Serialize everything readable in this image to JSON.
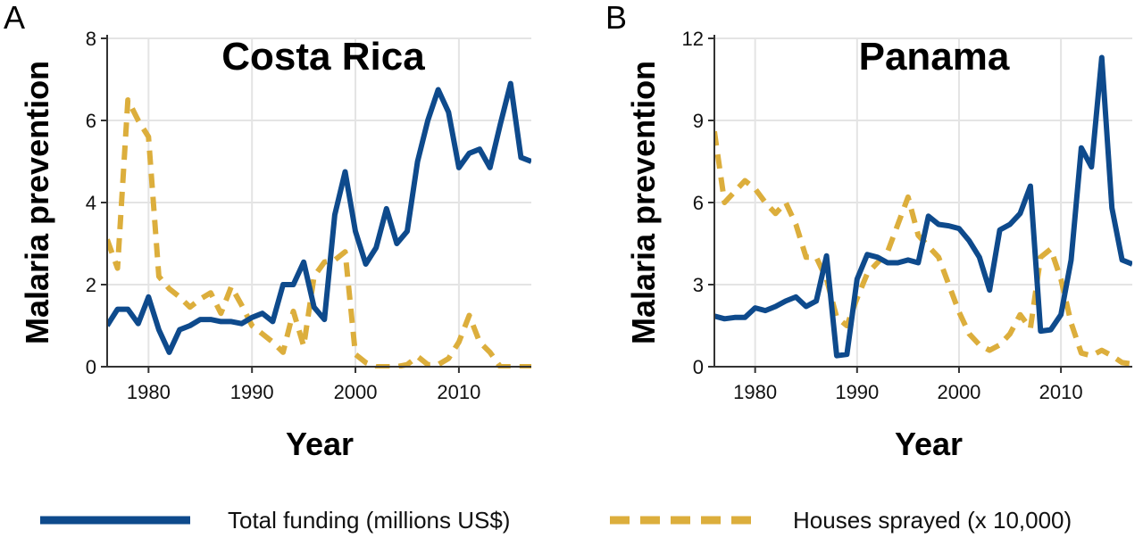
{
  "colors": {
    "funding": "#0e4a8c",
    "sprayed": "#dcae3c",
    "grid": "#e4e4e4",
    "axis": "#333333"
  },
  "legend": {
    "funding_label": "Total funding (millions US$)",
    "sprayed_label": "Houses sprayed (x 10,000)"
  },
  "chart_data": [
    {
      "type": "line",
      "panel_letter": "A",
      "title": "Costa Rica",
      "xlabel": "Year",
      "ylabel": "Malaria prevention",
      "xlim": [
        1976,
        2017
      ],
      "ylim": [
        0,
        8
      ],
      "xticks": [
        1980,
        1990,
        2000,
        2010
      ],
      "yticks": [
        0,
        2,
        4,
        6,
        8
      ],
      "grid": true,
      "series": [
        {
          "name": "Total funding (millions US$)",
          "style": "solid",
          "x": [
            1976,
            1977,
            1978,
            1979,
            1980,
            1981,
            1982,
            1983,
            1984,
            1985,
            1986,
            1987,
            1988,
            1989,
            1990,
            1991,
            1992,
            1993,
            1994,
            1995,
            1996,
            1997,
            1998,
            1999,
            2000,
            2001,
            2002,
            2003,
            2004,
            2005,
            2006,
            2007,
            2008,
            2009,
            2010,
            2011,
            2012,
            2013,
            2014,
            2015,
            2016,
            2017
          ],
          "y": [
            1.0,
            1.4,
            1.4,
            1.05,
            1.7,
            0.9,
            0.35,
            0.9,
            1.0,
            1.15,
            1.15,
            1.1,
            1.1,
            1.05,
            1.2,
            1.3,
            1.1,
            2.0,
            2.0,
            2.55,
            1.45,
            1.15,
            3.7,
            4.75,
            3.3,
            2.5,
            2.9,
            3.85,
            3.0,
            3.3,
            5.0,
            6.0,
            6.75,
            6.2,
            4.85,
            5.2,
            5.3,
            4.85,
            5.9,
            6.9,
            5.1,
            5.0
          ]
        },
        {
          "name": "Houses sprayed (x 10,000)",
          "style": "dashed",
          "x": [
            1976,
            1977,
            1978,
            1979,
            1980,
            1981,
            1982,
            1983,
            1984,
            1985,
            1986,
            1987,
            1988,
            1989,
            1990,
            1991,
            1992,
            1993,
            1994,
            1995,
            1996,
            1997,
            1998,
            1999,
            2000,
            2001,
            2002,
            2003,
            2004,
            2005,
            2006,
            2007,
            2008,
            2009,
            2010,
            2011,
            2012,
            2013,
            2014,
            2015,
            2016,
            2017
          ],
          "y": [
            3.1,
            2.4,
            6.5,
            6.0,
            5.6,
            2.2,
            1.9,
            1.7,
            1.45,
            1.65,
            1.8,
            1.3,
            1.95,
            1.5,
            1.0,
            0.8,
            0.6,
            0.35,
            1.35,
            0.5,
            2.2,
            2.55,
            2.6,
            2.8,
            0.3,
            0.1,
            0.0,
            0.0,
            0.0,
            0.05,
            0.25,
            0.05,
            0.05,
            0.2,
            0.6,
            1.25,
            0.6,
            0.35,
            0.0,
            0.0,
            0.0,
            0.0
          ]
        }
      ]
    },
    {
      "type": "line",
      "panel_letter": "B",
      "title": "Panama",
      "xlabel": "Year",
      "ylabel": "Malaria prevention",
      "xlim": [
        1976,
        2017
      ],
      "ylim": [
        0,
        12
      ],
      "xticks": [
        1980,
        1990,
        2000,
        2010
      ],
      "yticks": [
        0,
        3,
        6,
        9,
        12
      ],
      "grid": true,
      "series": [
        {
          "name": "Total funding (millions US$)",
          "style": "solid",
          "x": [
            1976,
            1977,
            1978,
            1979,
            1980,
            1981,
            1982,
            1983,
            1984,
            1985,
            1986,
            1987,
            1988,
            1989,
            1990,
            1991,
            1992,
            1993,
            1994,
            1995,
            1996,
            1997,
            1998,
            1999,
            2000,
            2001,
            2002,
            2003,
            2004,
            2005,
            2006,
            2007,
            2008,
            2009,
            2010,
            2011,
            2012,
            2013,
            2014,
            2015,
            2016,
            2017
          ],
          "y": [
            1.85,
            1.75,
            1.8,
            1.8,
            2.15,
            2.05,
            2.2,
            2.4,
            2.55,
            2.2,
            2.4,
            4.05,
            0.4,
            0.45,
            3.2,
            4.1,
            4.0,
            3.8,
            3.8,
            3.9,
            3.8,
            5.5,
            5.2,
            5.15,
            5.05,
            4.6,
            4.0,
            2.8,
            5.0,
            5.2,
            5.6,
            6.6,
            1.3,
            1.35,
            1.9,
            3.9,
            8.0,
            7.3,
            11.3,
            5.8,
            3.9,
            3.75
          ]
        },
        {
          "name": "Houses sprayed (x 10,000)",
          "style": "dashed",
          "x": [
            1976,
            1977,
            1978,
            1979,
            1980,
            1981,
            1982,
            1983,
            1984,
            1985,
            1986,
            1987,
            1988,
            1989,
            1990,
            1991,
            1992,
            1993,
            1994,
            1995,
            1996,
            1997,
            1998,
            1999,
            2000,
            2001,
            2002,
            2003,
            2004,
            2005,
            2006,
            2007,
            2008,
            2009,
            2010,
            2011,
            2012,
            2013,
            2014,
            2015,
            2016,
            2017
          ],
          "y": [
            8.6,
            6.0,
            6.4,
            6.8,
            6.5,
            6.0,
            5.6,
            6.0,
            5.2,
            4.0,
            4.0,
            3.2,
            1.8,
            1.5,
            2.5,
            3.4,
            3.8,
            4.2,
            5.2,
            6.2,
            4.8,
            4.4,
            4.0,
            3.0,
            2.0,
            1.2,
            0.8,
            0.6,
            0.8,
            1.2,
            1.9,
            1.4,
            4.0,
            4.3,
            3.2,
            1.6,
            0.5,
            0.4,
            0.6,
            0.4,
            0.15,
            0.1
          ]
        }
      ]
    }
  ]
}
